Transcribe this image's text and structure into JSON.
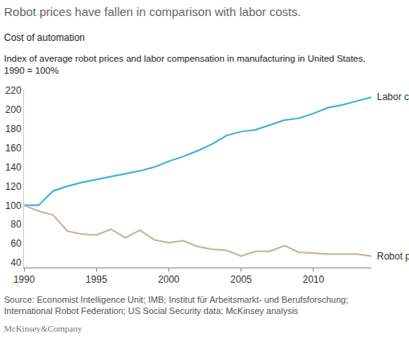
{
  "chart_data": {
    "type": "line",
    "title": "Robot prices have fallen in comparison with labor costs.",
    "subtitle": "Cost of automation",
    "description": [
      "Index of average robot prices and labor compensation in manufacturing in United States,",
      "1990 = 100%"
    ],
    "source": [
      "Source: Economist Intelligence Unit; IMB; Institut für Arbeitsmarkt- und Berufsforschung;",
      "International Robot Federation; US Social Security data; McKinsey analysis"
    ],
    "brand": "McKinsey&Company",
    "x": [
      1990,
      1991,
      1992,
      1993,
      1994,
      1995,
      1996,
      1997,
      1998,
      1999,
      2000,
      2001,
      2002,
      2003,
      2004,
      2005,
      2006,
      2007,
      2008,
      2009,
      2010,
      2011,
      2012,
      2013,
      2014
    ],
    "series": [
      {
        "name": "Labor costs",
        "color": "#3aaee0",
        "values": [
          100,
          100,
          115,
          120,
          124,
          127,
          130,
          133,
          136,
          140,
          146,
          151,
          157,
          164,
          173,
          177,
          179,
          184,
          189,
          191,
          196,
          202,
          205,
          209,
          213
        ]
      },
      {
        "name": "Robot prices",
        "color": "#c4b49c",
        "values": [
          100,
          94,
          90,
          73,
          70,
          69,
          75,
          66,
          74,
          64,
          61,
          63,
          57,
          54,
          53,
          47,
          52,
          52,
          58,
          51,
          50,
          49,
          49,
          49,
          47
        ]
      }
    ],
    "xlim": [
      1990,
      2014
    ],
    "xticks": [
      1990,
      1995,
      2000,
      2005,
      2010
    ],
    "ylim": [
      35,
      220
    ],
    "yticks": [
      40,
      60,
      80,
      100,
      120,
      140,
      160,
      180,
      200,
      220
    ],
    "grid": false
  }
}
